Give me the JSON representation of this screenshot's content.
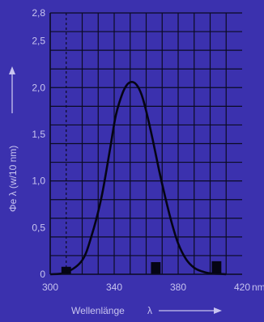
{
  "chart_data": {
    "type": "line",
    "xlabel": "Wellenlänge",
    "xlabel_symbol": "λ",
    "ylabel": "Φe λ (w/10 nm)",
    "x_unit": "nm",
    "xlim": [
      300,
      420
    ],
    "ylim": [
      0,
      2.8
    ],
    "x_ticks": [
      300,
      340,
      380,
      420
    ],
    "x_tick_labels": [
      "300",
      "340",
      "380",
      "420"
    ],
    "y_ticks": [
      0,
      0.5,
      1.0,
      1.5,
      2.0,
      2.5,
      2.8
    ],
    "y_tick_labels": [
      "0",
      "0,5",
      "1,0",
      "1,5",
      "2,0",
      "2,5",
      "2,8"
    ],
    "grid": true,
    "series": [
      {
        "x": [
          300,
          310,
          320,
          326,
          332,
          337,
          341,
          345,
          348,
          351,
          354,
          357,
          360,
          364,
          368,
          372,
          376,
          380,
          385,
          390,
          395,
          400,
          405,
          410
        ],
        "y": [
          0,
          0.02,
          0.15,
          0.42,
          0.82,
          1.3,
          1.7,
          1.93,
          2.03,
          2.06,
          2.03,
          1.93,
          1.75,
          1.45,
          1.12,
          0.82,
          0.55,
          0.33,
          0.16,
          0.07,
          0.03,
          0.01,
          0.005,
          0
        ]
      }
    ],
    "bars": [
      {
        "x": 310,
        "y": 0.08,
        "width": 6
      },
      {
        "x": 366,
        "y": 0.13,
        "width": 6
      },
      {
        "x": 404,
        "y": 0.14,
        "width": 6
      }
    ],
    "colors": {
      "background": "#3b31ae",
      "grid": "#0b0b22",
      "axis": "#0b0b22",
      "curve": "#050514",
      "text": "#c8c4ef",
      "arrow": "#c8c4ef"
    }
  }
}
